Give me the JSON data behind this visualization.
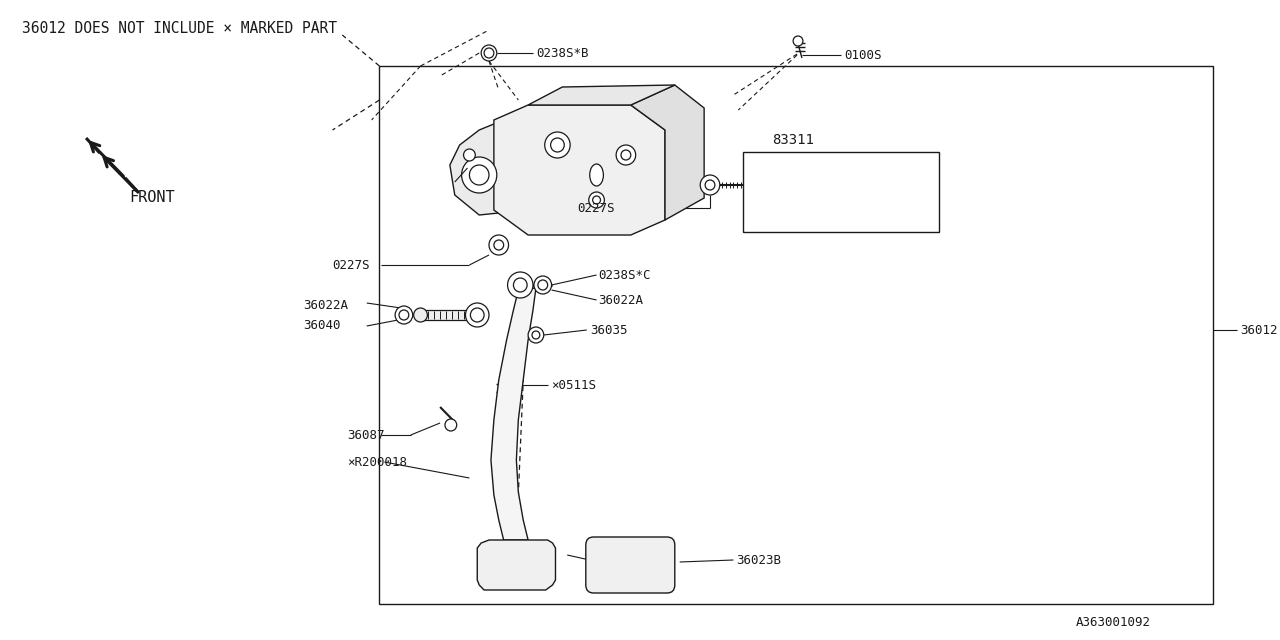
{
  "bg_color": "#ffffff",
  "line_color": "#1a1a1a",
  "title_note": "36012 DOES NOT INCLUDE × MARKED PART",
  "part_id": "A363001092",
  "labels": {
    "0238SB": "0238S*B",
    "0100S": "0100S",
    "83311": "83311",
    "0227S_right": "0227S",
    "0227S_left": "0227S",
    "36022A_top": "36022A",
    "0238SC": "0238S*C",
    "36022A_mid": "36022A",
    "36035": "36035",
    "36040": "36040",
    "0511S": "×0511S",
    "36087": "36087",
    "R200018": "×R200018",
    "36023B": "36023B",
    "36012": "36012",
    "FRONT": "FRONT"
  }
}
